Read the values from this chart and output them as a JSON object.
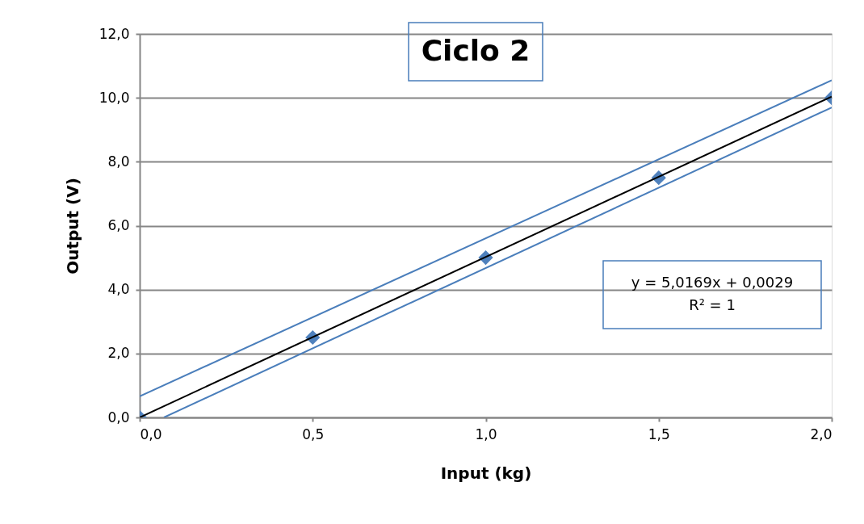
{
  "chart_data": {
    "type": "scatter",
    "title": "Ciclo 2",
    "xlabel": "Input (kg)",
    "ylabel": "Output  (V)",
    "xlim": [
      0,
      2
    ],
    "ylim": [
      0,
      12
    ],
    "xticks": [
      {
        "value": 0,
        "label": "0,0"
      },
      {
        "value": 0.5,
        "label": "0,5"
      },
      {
        "value": 1,
        "label": "1,0"
      },
      {
        "value": 1.5,
        "label": "1,5"
      },
      {
        "value": 2,
        "label": "2,0"
      }
    ],
    "yticks": [
      {
        "value": 0,
        "label": "0,0"
      },
      {
        "value": 2,
        "label": "2,0"
      },
      {
        "value": 4,
        "label": "4,0"
      },
      {
        "value": 6,
        "label": "6,0"
      },
      {
        "value": 8,
        "label": "8,0"
      },
      {
        "value": 10,
        "label": "10,0"
      },
      {
        "value": 12,
        "label": "12,0"
      }
    ],
    "grid": "y",
    "x": [
      0,
      0.5,
      1,
      1.5,
      2
    ],
    "series": [
      {
        "type": "scatter",
        "color": "#4f81bd",
        "values": [
          0,
          2.5,
          5.0,
          7.5,
          10.0
        ],
        "marker": "diamond"
      },
      {
        "type": "line",
        "color": "#000000",
        "x": [
          0,
          2
        ],
        "values": [
          0.0,
          10.04
        ],
        "line_style": "solid",
        "marker": "none"
      },
      {
        "type": "line",
        "color": "#4a7ebb",
        "x": [
          0,
          2
        ],
        "values": [
          0.66,
          10.55
        ],
        "line_style": "solid",
        "marker": "none"
      },
      {
        "type": "line",
        "color": "#4a7ebb",
        "x": [
          0.07,
          2
        ],
        "values": [
          0,
          9.7
        ],
        "line_style": "solid",
        "marker": "none"
      }
    ],
    "annotations": [
      "y = 5,0169x + 0,0029\nR² = 1"
    ]
  }
}
